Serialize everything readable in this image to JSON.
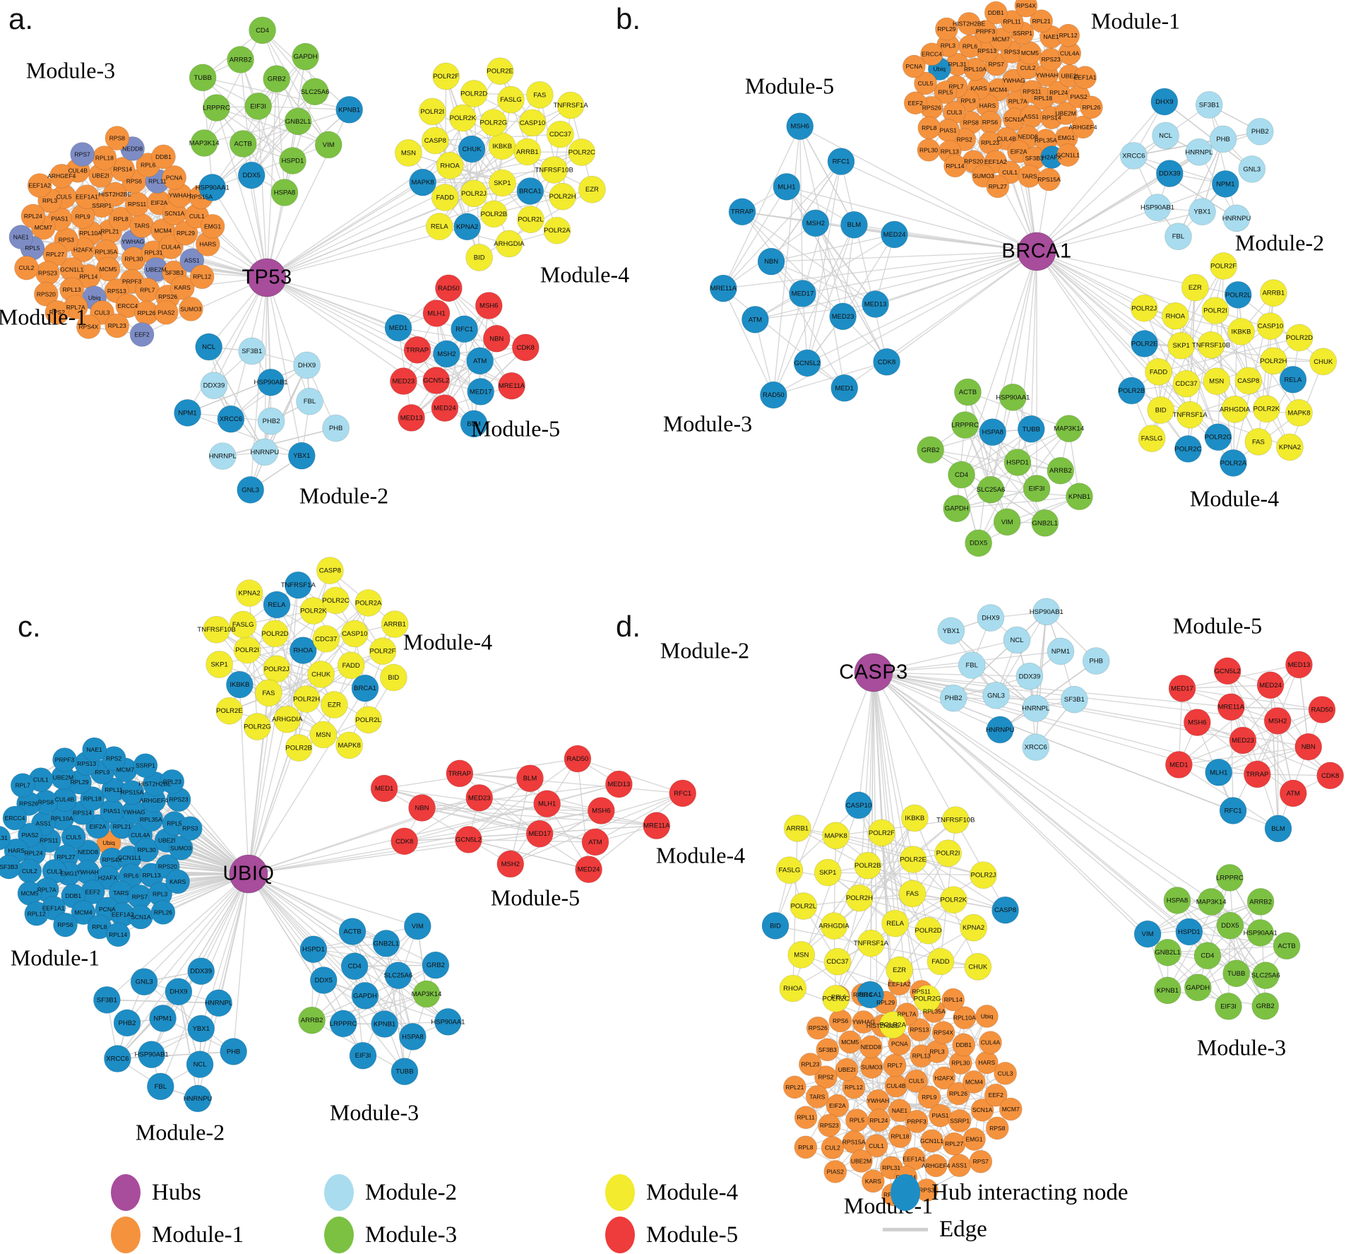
{
  "colors": {
    "hub": "#A84C9C",
    "module1": "#F5923E",
    "module2": "#A8DCEE",
    "module3": "#7CC142",
    "module4": "#F2EB2E",
    "module5": "#EE3B3B",
    "interacting": "#1D8DC5",
    "slate": "#7D8CC4",
    "edge": "#CFCFCF"
  },
  "gene_sets": {
    "module1": [
      "Ubiq",
      "RPS13",
      "CUL4B",
      "TARS",
      "RPL11",
      "EEF2",
      "RPL5",
      "RPL10A",
      "UBE2M",
      "NEDD8",
      "RPS20",
      "ASS1",
      "RPL13",
      "RPS6",
      "RPL6",
      "HARS",
      "EEF1A1",
      "H2AFX",
      "RPS11",
      "RPL29",
      "RPL23",
      "RPL35A",
      "ARHGEF4",
      "MCM4",
      "SSRP1",
      "SF3B3",
      "RPS15A",
      "RPL27",
      "RPS23",
      "RPL12",
      "RPS7",
      "PCNA",
      "PRPF3",
      "RPS3",
      "YWHAG",
      "DDB1",
      "RPL26",
      "NAE1",
      "SUMO3",
      "UBE2I",
      "CUL2",
      "RPS2",
      "SCN1A",
      "RPS8",
      "RPS14",
      "RPL9",
      "RPL7",
      "RPL21",
      "MCM5",
      "CUL5",
      "CUL4A",
      "CUL3",
      "GCN1L1",
      "RPS4X",
      "RPL7A",
      "PIAS1",
      "RPL14",
      "HIST2H2BE",
      "RPL30",
      "EMG1",
      "PIAS2",
      "RPL8",
      "KARS",
      "EIF2A",
      "RPL18",
      "RPL24",
      "RPL31",
      "RPS26",
      "ERCC4",
      "YWHAH",
      "CUL1",
      "MCM7",
      "RPL3",
      "EEF1A2"
    ],
    "module2": [
      "HNRNPL",
      "XRCC6",
      "NPM1",
      "SF3B1",
      "HSP90AB1",
      "PHB",
      "PHB2",
      "HNRNPU",
      "GNL3",
      "NCL",
      "DDX39",
      "DHX9",
      "YBX1",
      "FBL"
    ],
    "module3": [
      "CD4",
      "HSPD1",
      "GNB2L1",
      "EIF3I",
      "SLC25A6",
      "TUBB",
      "DDX5",
      "VIM",
      "LRPPRC",
      "ACTB",
      "GRB2",
      "KPNB1",
      "GAPDH",
      "HSPA8",
      "HSP90AA1",
      "ARRB2",
      "MAP3K14"
    ],
    "module4": [
      "RHOA",
      "MSN",
      "FASLG",
      "POLR2H",
      "POLR2L",
      "BID",
      "POLR2F",
      "POLR2A",
      "FAS",
      "KPNA2",
      "CDC37",
      "TNFRSF10B",
      "TNFRSF1A",
      "CASP8",
      "ARHGDIA",
      "FADD",
      "CHUK",
      "POLR2K",
      "SKP1",
      "IKBKB",
      "POLR2C",
      "POLR2E",
      "POLR2J",
      "POLR2G",
      "EZR",
      "RELA",
      "POLR2D",
      "POLR2I",
      "POLR2B",
      "ARRB1",
      "MAPK8",
      "CASP10"
    ],
    "module5": [
      "RAD50",
      "MRE11A",
      "MSH6",
      "MSH2",
      "GCN5L2",
      "MED1",
      "TRRAP",
      "MED17",
      "MED24",
      "NBN",
      "RFC1",
      "CDK8",
      "BLM",
      "ATM",
      "MLH1",
      "MED13",
      "MED23"
    ]
  },
  "panels": [
    {
      "id": "a",
      "letter": "a.",
      "hub": "TP53",
      "modules": [
        {
          "set": "module1",
          "label": "Module-1",
          "base": "module1",
          "overrides": {
            "slate": [
              "RPL11",
              "RPL5",
              "EEF2",
              "UBE2M",
              "NEDD8",
              "ASS1",
              "RPS7",
              "NAE1",
              "Ubiq",
              "YWHAG"
            ]
          }
        },
        {
          "set": "module2",
          "label": "Module-2",
          "base": "module2",
          "overrides": {
            "interacting": [
              "XRCC6",
              "NPM1",
              "HSP90AB1",
              "GNL3",
              "NCL",
              "YBX1"
            ]
          }
        },
        {
          "set": "module3",
          "label": "Module-3",
          "base": "module3",
          "overrides": {
            "interacting": [
              "DDX5",
              "KPNB1",
              "HSP90AA1"
            ]
          }
        },
        {
          "set": "module4",
          "label": "Module-4",
          "base": "module4",
          "extra": [
            "BRCA1"
          ],
          "overrides": {
            "interacting": [
              "KPNA2",
              "CHUK",
              "MAPK8",
              "BRCA1"
            ]
          }
        },
        {
          "set": "module5",
          "label": "Module-5",
          "base": "module5",
          "overrides": {
            "interacting": [
              "MSH2",
              "MED17",
              "MED1",
              "RFC1",
              "BLM",
              "ATM"
            ]
          }
        }
      ]
    },
    {
      "id": "b",
      "letter": "b.",
      "hub": "BRCA1",
      "modules": [
        {
          "set": "module1",
          "label": "Module-1",
          "base": "module1",
          "overrides": {
            "interacting": [
              "H2AFX",
              "Ubiq"
            ]
          }
        },
        {
          "set": "module2",
          "label": "Module-2",
          "base": "module2",
          "overrides": {
            "interacting": [
              "NPM1",
              "DHX9",
              "DDX39"
            ]
          }
        },
        {
          "set": "module3",
          "label": "Module-3",
          "base": "module3",
          "overrides": {
            "interacting": [
              "TUBB",
              "HSPA8"
            ]
          }
        },
        {
          "set": "module4",
          "label": "Module-4",
          "base": "module4",
          "overrides": {
            "interacting": [
              "POLR2A",
              "POLR2B",
              "POLR2C",
              "POLR2L",
              "POLR2E",
              "POLR2G",
              "RELA"
            ]
          }
        },
        {
          "set": "module5",
          "label": "Module-5",
          "base": "interacting",
          "overrides": {}
        }
      ]
    },
    {
      "id": "c",
      "letter": "c.",
      "hub": "UBIQ",
      "modules": [
        {
          "set": "module1",
          "label": "Module-1",
          "base": "interacting",
          "centerFirst": [
            "Ubiq"
          ],
          "overrides": {
            "module1": [
              "Ubiq"
            ]
          }
        },
        {
          "set": "module2",
          "label": "Module-2",
          "base": "interacting",
          "overrides": {}
        },
        {
          "set": "module3",
          "label": "Module-3",
          "base": "interacting",
          "overrides": {
            "module3": [
              "ARRB2",
              "MAP3K14"
            ]
          }
        },
        {
          "set": "module4",
          "label": "Module-4",
          "base": "module4",
          "extra": [
            "BRCA1"
          ],
          "overrides": {
            "interacting": [
              "BRCA1",
              "IKBKB",
              "TNFRSF1A",
              "RELA",
              "RHOA"
            ]
          }
        },
        {
          "set": "module5",
          "label": "Module-5",
          "base": "module5",
          "overrides": {}
        }
      ]
    },
    {
      "id": "d",
      "letter": "d.",
      "hub": "CASP3",
      "modules": [
        {
          "set": "module1",
          "label": "Module-1",
          "base": "module1",
          "overrides": {}
        },
        {
          "set": "module2",
          "label": "Module-2",
          "base": "module2",
          "overrides": {
            "interacting": [
              "HNRNPU"
            ]
          }
        },
        {
          "set": "module3",
          "label": "Module-3",
          "base": "module3",
          "overrides": {
            "interacting": [
              "VIM",
              "HSPD1"
            ]
          }
        },
        {
          "set": "module4",
          "label": "Module-4",
          "base": "module4",
          "extra": [
            "BRCA1"
          ],
          "overrides": {
            "interacting": [
              "BRCA1",
              "CASP10",
              "CASP8",
              "BID"
            ]
          }
        },
        {
          "set": "module5",
          "label": "Module-5",
          "base": "module5",
          "overrides": {
            "interacting": [
              "RFC1",
              "MLH1",
              "BLM"
            ]
          }
        }
      ]
    }
  ],
  "legend": {
    "rows": [
      [
        {
          "key": "hub",
          "label": "Hubs"
        },
        {
          "key": "module2",
          "label": "Module-2"
        },
        {
          "key": "module4",
          "label": "Module-4"
        },
        {
          "key": "interacting",
          "label": "Hub interacting node"
        }
      ],
      [
        {
          "key": "module1",
          "label": "Module-1"
        },
        {
          "key": "module3",
          "label": "Module-3"
        },
        {
          "key": "module5",
          "label": "Module-5"
        },
        {
          "key": "edge",
          "label": "Edge"
        }
      ]
    ]
  }
}
